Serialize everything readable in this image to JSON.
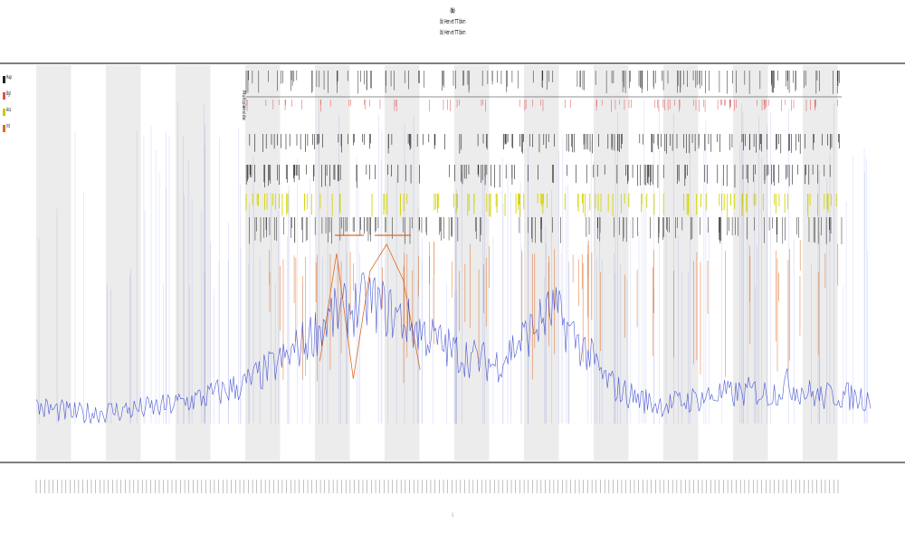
{
  "titles": [
    "(b)",
    "(b) Hen et TT bkm",
    "(b) Hen et TT bkm"
  ],
  "legend": [
    {
      "label": "Hap",
      "color": "#222222"
    },
    {
      "label": "Bgl",
      "color": "#e05050"
    },
    {
      "label": "Acs",
      "color": "#c8c800"
    },
    {
      "label": "Int",
      "color": "#e06a20"
    }
  ],
  "track_labels": [
    "Multiple",
    "inside"
  ],
  "colors": {
    "band": "#ececec",
    "signal": "#2233cc",
    "ruler": "#222222",
    "ticks_red": "#e05050",
    "yellow": "#d4d400",
    "orange": "#e06a20",
    "axis": "#222222"
  },
  "chart_data": {
    "type": "line",
    "title": "(b)",
    "subtitle": [
      "(b) Hen et TT bkm",
      "(b) Hen et TT bkm"
    ],
    "xlabel": "i",
    "ylabel": "",
    "grid": false,
    "legend_position": "left",
    "bands": 12,
    "x_tick_count": 190,
    "series": [
      {
        "name": "signal",
        "color": "#2233cc",
        "x": [
          0,
          5,
          10,
          15,
          20,
          25,
          30,
          35,
          40,
          45,
          50,
          55,
          60,
          62,
          64,
          66,
          68,
          70,
          72,
          74,
          76,
          78,
          80,
          82,
          84,
          86,
          88,
          90,
          92,
          94,
          96,
          98,
          100
        ],
        "values": [
          5,
          3,
          4,
          5,
          8,
          12,
          20,
          32,
          38,
          30,
          22,
          18,
          30,
          35,
          28,
          22,
          14,
          10,
          8,
          6,
          6,
          7,
          8,
          9,
          9,
          10,
          9,
          12,
          10,
          8,
          9,
          8,
          8
        ]
      },
      {
        "name": "Int",
        "color": "#e06a20",
        "x": [
          34,
          36,
          38,
          40,
          42,
          44,
          46
        ],
        "values": [
          35,
          95,
          25,
          85,
          100,
          80,
          30
        ]
      }
    ]
  }
}
